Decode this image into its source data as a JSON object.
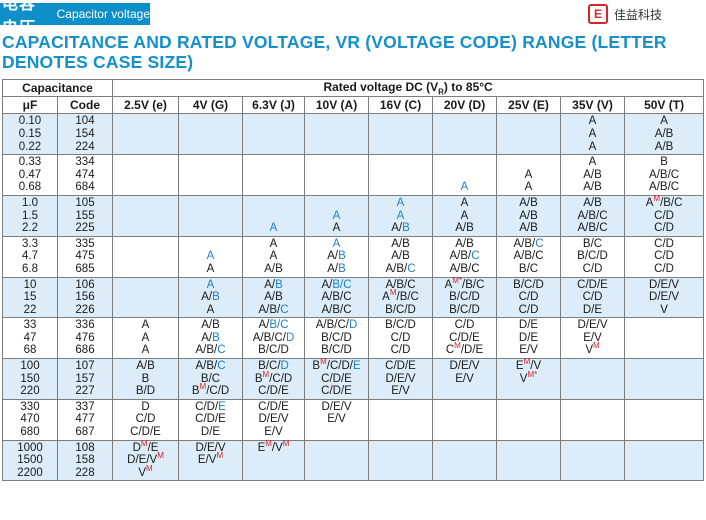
{
  "header": {
    "chinese": "电容电压",
    "english": "Capacitor voltage",
    "logo_mark": "E",
    "logo_text": "佳益科技"
  },
  "title": "CAPACITANCE AND RATED VOLTAGE, VR (VOLTAGE CODE) RANGE (LETTER DENOTES CASE SIZE)",
  "table": {
    "cap_header": "Capacitance",
    "rated_prefix": "Rated voltage DC (V",
    "rated_sub": "R",
    "rated_suffix": ") to 85°C",
    "uf_header": "μF",
    "code_header": "Code",
    "voltages": [
      "2.5V (e)",
      "4V (G)",
      "6.3V (J)",
      "10V (A)",
      "16V (C)",
      "20V (D)",
      "25V (E)",
      "35V (V)",
      "50V (T)"
    ],
    "groups": [
      {
        "uf": [
          "0.10",
          "0.15",
          "0.22"
        ],
        "code": [
          "104",
          "154",
          "224"
        ],
        "cells": [
          "",
          "",
          "",
          "",
          "",
          "",
          "",
          "A\nA\nA",
          "A\nA/B\nA/B"
        ]
      },
      {
        "uf": [
          "0.33",
          "0.47",
          "0.68"
        ],
        "code": [
          "334",
          "474",
          "684"
        ],
        "cells": [
          "",
          "",
          "",
          "",
          "",
          "\n\n[A]",
          "\nA\nA",
          "A\nA/B\nA/B",
          "B\nA/B/C\nA/B/C"
        ]
      },
      {
        "uf": [
          "1.0",
          "1.5",
          "2.2"
        ],
        "code": [
          "105",
          "155",
          "225"
        ],
        "cells": [
          "",
          "",
          "\n\n[A]",
          "\n[A]\nA",
          "[A]\n[A]\nA/[B]",
          "A\nA\nA/B",
          "A/B\nA/B\nA/B",
          "A/B\nA/B/C\nA/B/C",
          "A{M}/B/C\nC/D\nC/D"
        ]
      },
      {
        "uf": [
          "3.3",
          "4.7",
          "6.8"
        ],
        "code": [
          "335",
          "475",
          "685"
        ],
        "cells": [
          "",
          "\n[A]\nA",
          "A\nA\nA/B",
          "[A]\nA/[B]\nA/[B]",
          "A/B\nA/B\nA/B/[C]",
          "A/B\nA/B/[C]\nA/B/C",
          "A/B/[C]\nA/B/C\nB/C",
          "B/C\nB/C/D\nC/D",
          "C/D\nC/D\nC/D"
        ]
      },
      {
        "uf": [
          "10",
          "15",
          "22"
        ],
        "code": [
          "106",
          "156",
          "226"
        ],
        "cells": [
          "",
          "[A]\nA/[B]\nA",
          "A/[B]\nA/B\nA/B/[C]",
          "A/[B/C]\nA/B/C\nA/B/C",
          "A/B/C\nA{M}/B/C\nB/C/D",
          "A{M*}/B/C\nB/C/D\nB/C/D",
          "B/C/D\nC/D\nC/D",
          "C/D/E\nC/D\nD/E",
          "D/E/V\nD/E/V\nV"
        ]
      },
      {
        "uf": [
          "33",
          "47",
          "68"
        ],
        "code": [
          "336",
          "476",
          "686"
        ],
        "cells": [
          "A\nA\nA",
          "A/B\nA/[B]\nA/B/[C]",
          "A/[B/C]\nA/B/C/[D]\nB/C/D",
          "A/B/C/[D]\nB/C/D\nB/C/D",
          "B/C/D\nC/D\nC/D",
          "C/D\nC/D/E\nC{M}/D/E",
          "D/E\nD/E\nE/V",
          "D/E/V\nE/V\nV{M}",
          ""
        ]
      },
      {
        "uf": [
          "100",
          "150",
          "220"
        ],
        "code": [
          "107",
          "157",
          "227"
        ],
        "cells": [
          "A/B\nB\nB/D",
          "A/B/[C]\nB/C\nB{M}/C/D",
          "B/C/[D]\nB{M}/C/D\nC/D/E",
          "B{M}/C/D/[E]\nC/D/E\nC/D/E",
          "C/D/E\nD/E/V\nE/V",
          "D/E/V\nE/V",
          "E{M}/V\nV{M*}",
          "",
          ""
        ]
      },
      {
        "uf": [
          "330",
          "470",
          "680"
        ],
        "code": [
          "337",
          "477",
          "687"
        ],
        "cells": [
          "D\nC/D\nC/D/E",
          "C/D/[E]\nC/D/E\nD/E",
          "C/D/E\nD/E/V\nE/V",
          "D/E/V\nE/V",
          "",
          "",
          "",
          "",
          ""
        ]
      },
      {
        "uf": [
          "1000",
          "1500",
          "2200"
        ],
        "code": [
          "108",
          "158",
          "228"
        ],
        "cells": [
          "D{M}/E\nD/E/V{M}\nV{M}",
          "D/E/V\nE/V{M}",
          "E{M}/V{M}",
          "",
          "",
          "",
          "",
          "",
          ""
        ]
      }
    ]
  }
}
